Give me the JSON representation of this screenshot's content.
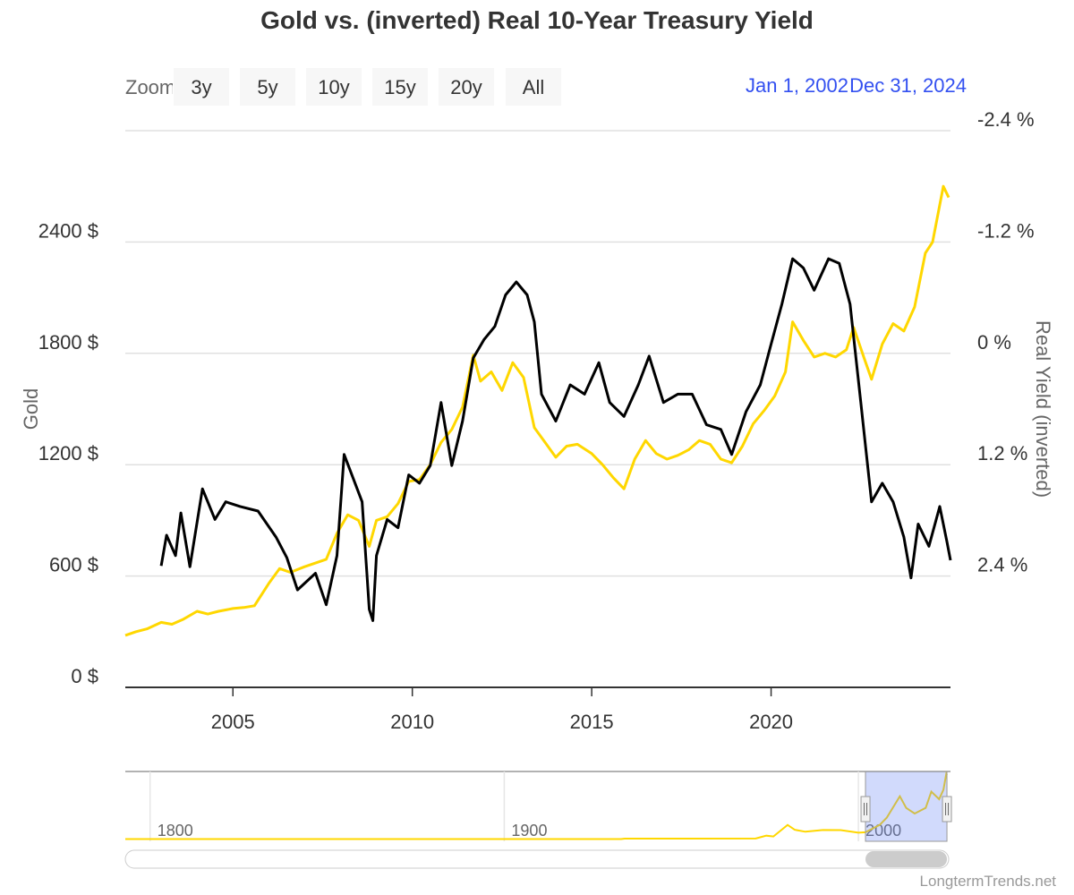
{
  "chart_data": [
    {
      "type": "line",
      "title": "Gold vs. (inverted) Real 10-Year Treasury Yield",
      "range_selector": {
        "label": "Zoom",
        "buttons": [
          "3y",
          "5y",
          "10y",
          "15y",
          "20y",
          "All"
        ]
      },
      "date_range": {
        "from": "Jan 1, 2002",
        "to": "Dec 31, 2024"
      },
      "y_label": "Gold",
      "y2_label": "Real Yield (inverted)",
      "credits": "LongtermTrends.net",
      "xlim": [
        2002,
        2025
      ],
      "xticks": [
        2005,
        2010,
        2015,
        2020
      ],
      "ylim": [
        0,
        3000
      ],
      "yticks": [
        {
          "value": 0,
          "label": "0 $"
        },
        {
          "value": 600,
          "label": "600 $"
        },
        {
          "value": 1200,
          "label": "1200 $"
        },
        {
          "value": 1800,
          "label": "1800 $"
        },
        {
          "value": 2400,
          "label": "2400 $"
        }
      ],
      "y2lim": [
        3.6,
        -2.4
      ],
      "y2ticks": [
        {
          "value": -2.4,
          "label": "-2.4 %"
        },
        {
          "value": -1.2,
          "label": "-1.2 %"
        },
        {
          "value": 0,
          "label": "0 %"
        },
        {
          "value": 1.2,
          "label": "1.2 %"
        },
        {
          "value": 2.4,
          "label": "2.4 %"
        }
      ],
      "grid": true,
      "series": [
        {
          "name": "Gold",
          "color": "#ffd700",
          "x": [
            2002.0,
            2002.3,
            2002.6,
            2003.0,
            2003.3,
            2003.6,
            2004.0,
            2004.3,
            2004.6,
            2005.0,
            2005.3,
            2005.6,
            2006.0,
            2006.3,
            2006.6,
            2007.0,
            2007.3,
            2007.6,
            2007.9,
            2008.2,
            2008.5,
            2008.8,
            2009.0,
            2009.3,
            2009.6,
            2009.9,
            2010.2,
            2010.5,
            2010.8,
            2011.1,
            2011.4,
            2011.7,
            2011.9,
            2012.2,
            2012.5,
            2012.8,
            2013.1,
            2013.4,
            2013.7,
            2014.0,
            2014.3,
            2014.6,
            2015.0,
            2015.3,
            2015.6,
            2015.9,
            2016.2,
            2016.5,
            2016.8,
            2017.1,
            2017.4,
            2017.7,
            2018.0,
            2018.3,
            2018.6,
            2018.9,
            2019.2,
            2019.5,
            2019.8,
            2020.1,
            2020.4,
            2020.6,
            2020.9,
            2021.2,
            2021.5,
            2021.8,
            2022.1,
            2022.3,
            2022.6,
            2022.8,
            2023.1,
            2023.4,
            2023.7,
            2024.0,
            2024.3,
            2024.5,
            2024.8,
            2024.95
          ],
          "values": [
            280,
            300,
            315,
            350,
            340,
            365,
            410,
            395,
            410,
            425,
            430,
            440,
            560,
            640,
            620,
            650,
            670,
            690,
            830,
            930,
            900,
            760,
            900,
            920,
            990,
            1110,
            1120,
            1200,
            1320,
            1390,
            1510,
            1790,
            1650,
            1700,
            1600,
            1750,
            1670,
            1400,
            1320,
            1240,
            1300,
            1310,
            1260,
            1200,
            1130,
            1070,
            1230,
            1330,
            1260,
            1230,
            1250,
            1280,
            1330,
            1310,
            1230,
            1210,
            1300,
            1420,
            1490,
            1570,
            1700,
            1970,
            1870,
            1780,
            1800,
            1780,
            1820,
            1940,
            1770,
            1660,
            1850,
            1960,
            1920,
            2050,
            2340,
            2400,
            2700,
            2640
          ]
        },
        {
          "name": "Real Yield (inverted)",
          "color": "#000000",
          "axis": "y2",
          "x": [
            2003.0,
            2003.15,
            2003.4,
            2003.55,
            2003.8,
            2004.15,
            2004.5,
            2004.8,
            2005.2,
            2005.7,
            2006.2,
            2006.5,
            2006.8,
            2007.3,
            2007.6,
            2007.9,
            2008.1,
            2008.6,
            2008.8,
            2008.9,
            2009.0,
            2009.3,
            2009.6,
            2009.9,
            2010.2,
            2010.5,
            2010.8,
            2011.1,
            2011.4,
            2011.7,
            2012.0,
            2012.3,
            2012.6,
            2012.9,
            2013.2,
            2013.4,
            2013.6,
            2014.0,
            2014.4,
            2014.8,
            2015.2,
            2015.5,
            2015.9,
            2016.3,
            2016.6,
            2017.0,
            2017.4,
            2017.8,
            2018.2,
            2018.6,
            2018.9,
            2019.3,
            2019.7,
            2020.0,
            2020.3,
            2020.6,
            2020.9,
            2021.2,
            2021.6,
            2021.9,
            2022.2,
            2022.5,
            2022.8,
            2023.1,
            2023.4,
            2023.7,
            2023.9,
            2024.1,
            2024.4,
            2024.7,
            2024.9,
            2025.0
          ],
          "values": [
            2.29,
            1.96,
            2.18,
            1.72,
            2.3,
            1.46,
            1.79,
            1.6,
            1.65,
            1.7,
            1.98,
            2.2,
            2.55,
            2.37,
            2.71,
            2.18,
            1.09,
            1.6,
            2.76,
            2.88,
            2.18,
            1.79,
            1.88,
            1.31,
            1.4,
            1.21,
            0.53,
            1.21,
            0.73,
            0.05,
            -0.15,
            -0.29,
            -0.63,
            -0.77,
            -0.63,
            -0.34,
            0.44,
            0.73,
            0.34,
            0.44,
            0.1,
            0.53,
            0.68,
            0.34,
            0.03,
            0.53,
            0.44,
            0.44,
            0.77,
            0.82,
            1.09,
            0.63,
            0.34,
            -0.1,
            -0.53,
            -1.02,
            -0.92,
            -0.68,
            -1.02,
            -0.97,
            -0.53,
            0.53,
            1.6,
            1.4,
            1.6,
            1.98,
            2.42,
            1.84,
            2.08,
            1.65,
            2.03,
            2.23
          ]
        }
      ]
    },
    {
      "type": "line",
      "xlim": [
        1793,
        2026
      ],
      "xticks": [
        1800,
        1900,
        2000
      ],
      "ylim": [
        0,
        2800
      ],
      "series": [
        {
          "color": "#ffd700",
          "x": [
            1793,
            1933,
            1934,
            1971,
            1974,
            1976,
            1980,
            1982,
            1985,
            1990,
            1995,
            2000,
            2002,
            2006,
            2008,
            2011.7,
            2013.5,
            2015.9,
            2019,
            2020.6,
            2022.8,
            2024,
            2024.8,
            2025
          ],
          "values": [
            20,
            20,
            35,
            40,
            160,
            125,
            600,
            400,
            320,
            390,
            385,
            280,
            300,
            600,
            900,
            1780,
            1300,
            1070,
            1300,
            1970,
            1660,
            2050,
            2700,
            2640
          ]
        }
      ]
    }
  ]
}
